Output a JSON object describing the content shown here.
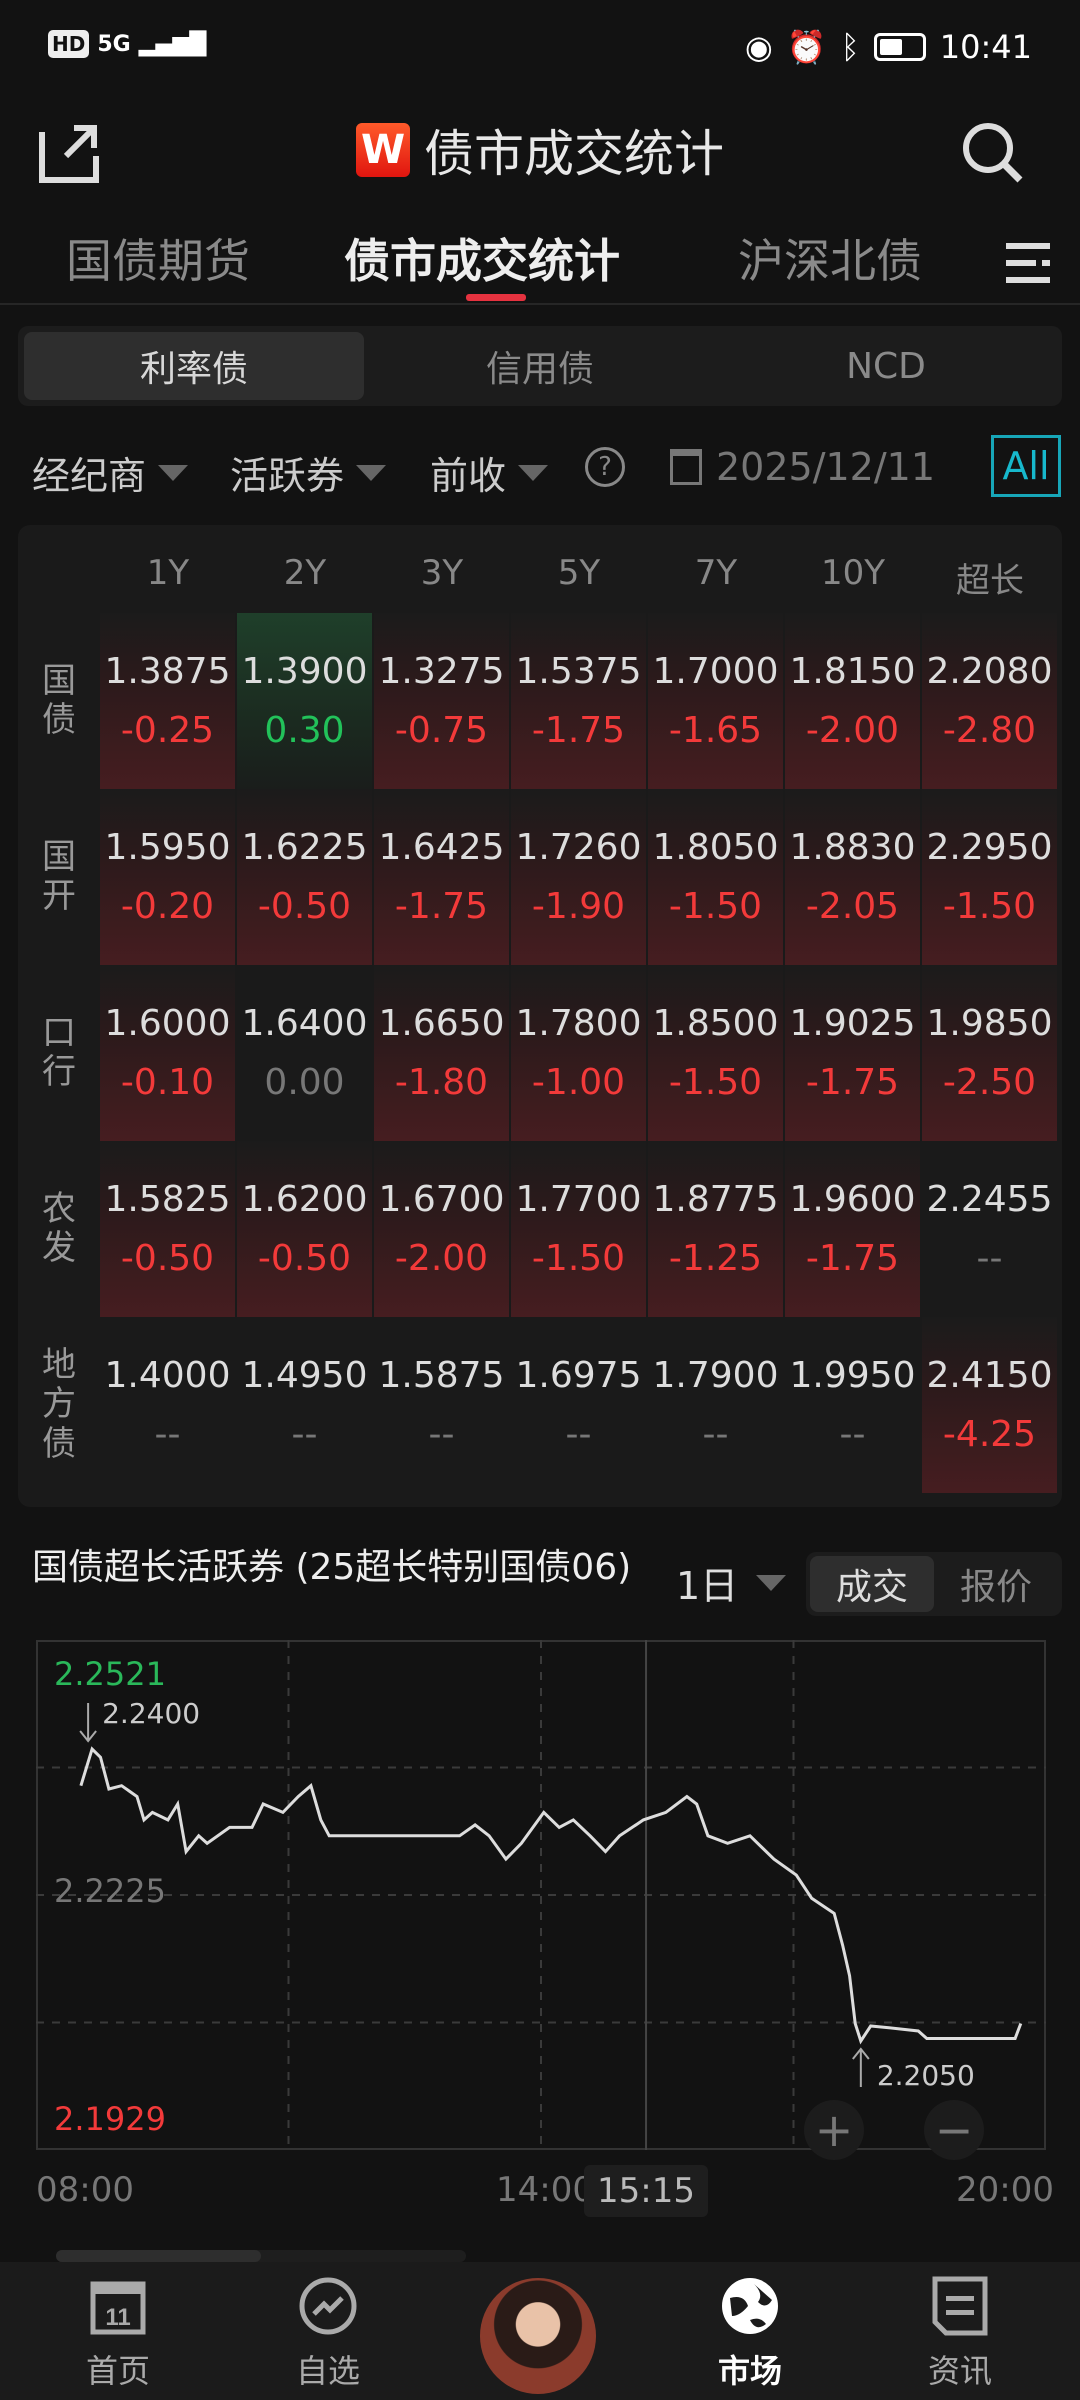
{
  "status_bar": {
    "network": "5G",
    "hd": "HD",
    "time": "10:41"
  },
  "header": {
    "title": "债市成交统计",
    "logo_letter": "W",
    "share_icon": "share-icon",
    "search_icon": "search-icon"
  },
  "tabs": [
    {
      "label": "国债期货"
    },
    {
      "label": "债市成交统计",
      "active": true
    },
    {
      "label": "沪深北债"
    }
  ],
  "segments": [
    {
      "label": "利率债",
      "active": true
    },
    {
      "label": "信用债"
    },
    {
      "label": "NCD"
    }
  ],
  "filters": {
    "broker": "经纪商",
    "bond_type": "活跃券",
    "close": "前收",
    "date": "2025/12/11",
    "all": "All"
  },
  "colors": {
    "up": "#f33a3a",
    "down": "#22c25a",
    "accent": "#e5323f",
    "all_border": "#17a6b8"
  },
  "table": {
    "columns": [
      "1Y",
      "2Y",
      "3Y",
      "5Y",
      "7Y",
      "10Y",
      "超长"
    ],
    "rows": [
      {
        "label": "国债",
        "cells": [
          [
            "1.3875",
            "-0.25",
            "up"
          ],
          [
            "1.3900",
            "0.30",
            "down"
          ],
          [
            "1.3275",
            "-0.75",
            "up"
          ],
          [
            "1.5375",
            "-1.75",
            "up"
          ],
          [
            "1.7000",
            "-1.65",
            "up"
          ],
          [
            "1.8150",
            "-2.00",
            "up"
          ],
          [
            "2.2080",
            "-2.80",
            "up"
          ]
        ]
      },
      {
        "label": "国开",
        "cells": [
          [
            "1.5950",
            "-0.20",
            "up"
          ],
          [
            "1.6225",
            "-0.50",
            "up"
          ],
          [
            "1.6425",
            "-1.75",
            "up"
          ],
          [
            "1.7260",
            "-1.90",
            "up"
          ],
          [
            "1.8050",
            "-1.50",
            "up"
          ],
          [
            "1.8830",
            "-2.05",
            "up"
          ],
          [
            "2.2950",
            "-1.50",
            "up"
          ]
        ]
      },
      {
        "label": "口行",
        "cells": [
          [
            "1.6000",
            "-0.10",
            "up"
          ],
          [
            "1.6400",
            "0.00",
            "flat"
          ],
          [
            "1.6650",
            "-1.80",
            "up"
          ],
          [
            "1.7800",
            "-1.00",
            "up"
          ],
          [
            "1.8500",
            "-1.50",
            "up"
          ],
          [
            "1.9025",
            "-1.75",
            "up"
          ],
          [
            "1.9850",
            "-2.50",
            "up"
          ]
        ]
      },
      {
        "label": "农发",
        "cells": [
          [
            "1.5825",
            "-0.50",
            "up"
          ],
          [
            "1.6200",
            "-0.50",
            "up"
          ],
          [
            "1.6700",
            "-2.00",
            "up"
          ],
          [
            "1.7700",
            "-1.50",
            "up"
          ],
          [
            "1.8775",
            "-1.25",
            "up"
          ],
          [
            "1.9600",
            "-1.75",
            "up"
          ],
          [
            "2.2455",
            "--",
            "flat"
          ]
        ]
      },
      {
        "label": "地方债",
        "cells": [
          [
            "1.4000",
            "--",
            "flat"
          ],
          [
            "1.4950",
            "--",
            "flat"
          ],
          [
            "1.5875",
            "--",
            "flat"
          ],
          [
            "1.6975",
            "--",
            "flat"
          ],
          [
            "1.7900",
            "--",
            "flat"
          ],
          [
            "1.9950",
            "--",
            "flat"
          ],
          [
            "2.4150",
            "-4.25",
            "up"
          ]
        ]
      }
    ]
  },
  "chart_section": {
    "title": "国债超长活跃券 (25超长特别国债06)",
    "period": "1日",
    "toggle": [
      {
        "label": "成交",
        "active": true
      },
      {
        "label": "报价"
      }
    ],
    "zoom_in": "+",
    "zoom_out": "−"
  },
  "chart_data": {
    "type": "line",
    "ylim": [
      2.1929,
      2.2521
    ],
    "y_labels": {
      "max": "2.2521",
      "mid": "2.2225",
      "min": "2.1929"
    },
    "x_labels": [
      "08:00",
      "14:00",
      "20:00"
    ],
    "cursor_label": "15:15",
    "annotations": {
      "high": "2.2400",
      "low": "2.2050"
    },
    "grid": true,
    "points": [
      [
        "08:32",
        2.2356
      ],
      [
        "08:40",
        2.24
      ],
      [
        "08:46",
        2.239
      ],
      [
        "08:52",
        2.2352
      ],
      [
        "09:01",
        2.2356
      ],
      [
        "09:12",
        2.2343
      ],
      [
        "09:17",
        2.2315
      ],
      [
        "09:23",
        2.2324
      ],
      [
        "09:34",
        2.2315
      ],
      [
        "09:41",
        2.2334
      ],
      [
        "09:47",
        2.2277
      ],
      [
        "09:56",
        2.2296
      ],
      [
        "10:02",
        2.2287
      ],
      [
        "10:18",
        2.2306
      ],
      [
        "10:34",
        2.2306
      ],
      [
        "10:42",
        2.2334
      ],
      [
        "10:56",
        2.2324
      ],
      [
        "11:07",
        2.2343
      ],
      [
        "11:16",
        2.2356
      ],
      [
        "11:23",
        2.2315
      ],
      [
        "11:29",
        2.2296
      ],
      [
        "13:02",
        2.2296
      ],
      [
        "13:13",
        2.2309
      ],
      [
        "13:23",
        2.2296
      ],
      [
        "13:35",
        2.2268
      ],
      [
        "13:46",
        2.2287
      ],
      [
        "14:02",
        2.2324
      ],
      [
        "14:13",
        2.2306
      ],
      [
        "14:23",
        2.2315
      ],
      [
        "14:35",
        2.2296
      ],
      [
        "14:46",
        2.2277
      ],
      [
        "14:56",
        2.2296
      ],
      [
        "15:13",
        2.2315
      ],
      [
        "15:29",
        2.2324
      ],
      [
        "15:44",
        2.2343
      ],
      [
        "15:51",
        2.2334
      ],
      [
        "15:59",
        2.2296
      ],
      [
        "16:13",
        2.2287
      ],
      [
        "16:29",
        2.2296
      ],
      [
        "16:46",
        2.2268
      ],
      [
        "17:02",
        2.2249
      ],
      [
        "17:13",
        2.2221
      ],
      [
        "17:29",
        2.2203
      ],
      [
        "17:35",
        2.2165
      ],
      [
        "17:40",
        2.2128
      ],
      [
        "17:44",
        2.2071
      ],
      [
        "17:48",
        2.205
      ],
      [
        "17:55",
        2.2068
      ],
      [
        "18:08",
        2.2066
      ],
      [
        "18:29",
        2.2062
      ],
      [
        "18:35",
        2.2053
      ],
      [
        "19:38",
        2.2053
      ],
      [
        "19:42",
        2.2071
      ]
    ]
  },
  "bottom_nav": [
    {
      "label": "首页",
      "icon": "calendar-icon"
    },
    {
      "label": "自选",
      "icon": "trend-icon"
    },
    {
      "label": "",
      "icon": "avatar"
    },
    {
      "label": "市场",
      "icon": "globe-icon",
      "active": true
    },
    {
      "label": "资讯",
      "icon": "news-icon"
    }
  ]
}
